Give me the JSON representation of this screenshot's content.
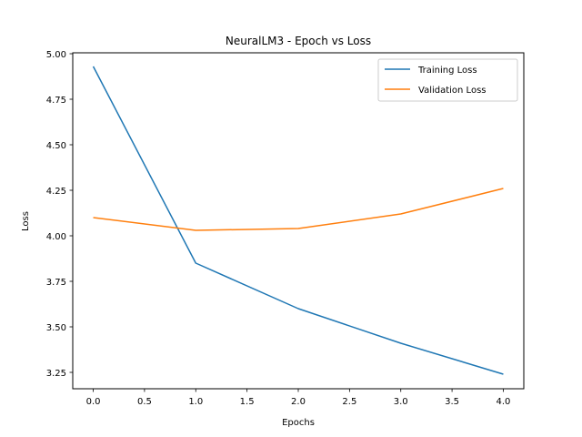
{
  "chart_data": {
    "type": "line",
    "title": "NeuralLM3 - Epoch vs Loss",
    "xlabel": "Epochs",
    "ylabel": "Loss",
    "x": [
      0,
      1,
      2,
      3,
      4
    ],
    "series": [
      {
        "name": "Training Loss",
        "color": "#1f77b4",
        "values": [
          4.93,
          3.85,
          3.6,
          3.41,
          3.24
        ]
      },
      {
        "name": "Validation Loss",
        "color": "#ff7f0e",
        "values": [
          4.1,
          4.03,
          4.04,
          4.12,
          4.26
        ]
      }
    ],
    "xlim": [
      -0.2,
      4.2
    ],
    "ylim": [
      3.16,
      5.005
    ],
    "xticks": [
      0.0,
      0.5,
      1.0,
      1.5,
      2.0,
      2.5,
      3.0,
      3.5,
      4.0
    ],
    "xtick_labels": [
      "0.0",
      "0.5",
      "1.0",
      "1.5",
      "2.0",
      "2.5",
      "3.0",
      "3.5",
      "4.0"
    ],
    "yticks": [
      3.25,
      3.5,
      3.75,
      4.0,
      4.25,
      4.5,
      4.75,
      5.0
    ],
    "ytick_labels": [
      "3.25",
      "3.50",
      "3.75",
      "4.00",
      "4.25",
      "4.50",
      "4.75",
      "5.00"
    ],
    "grid": false,
    "legend_position": "top-right"
  }
}
